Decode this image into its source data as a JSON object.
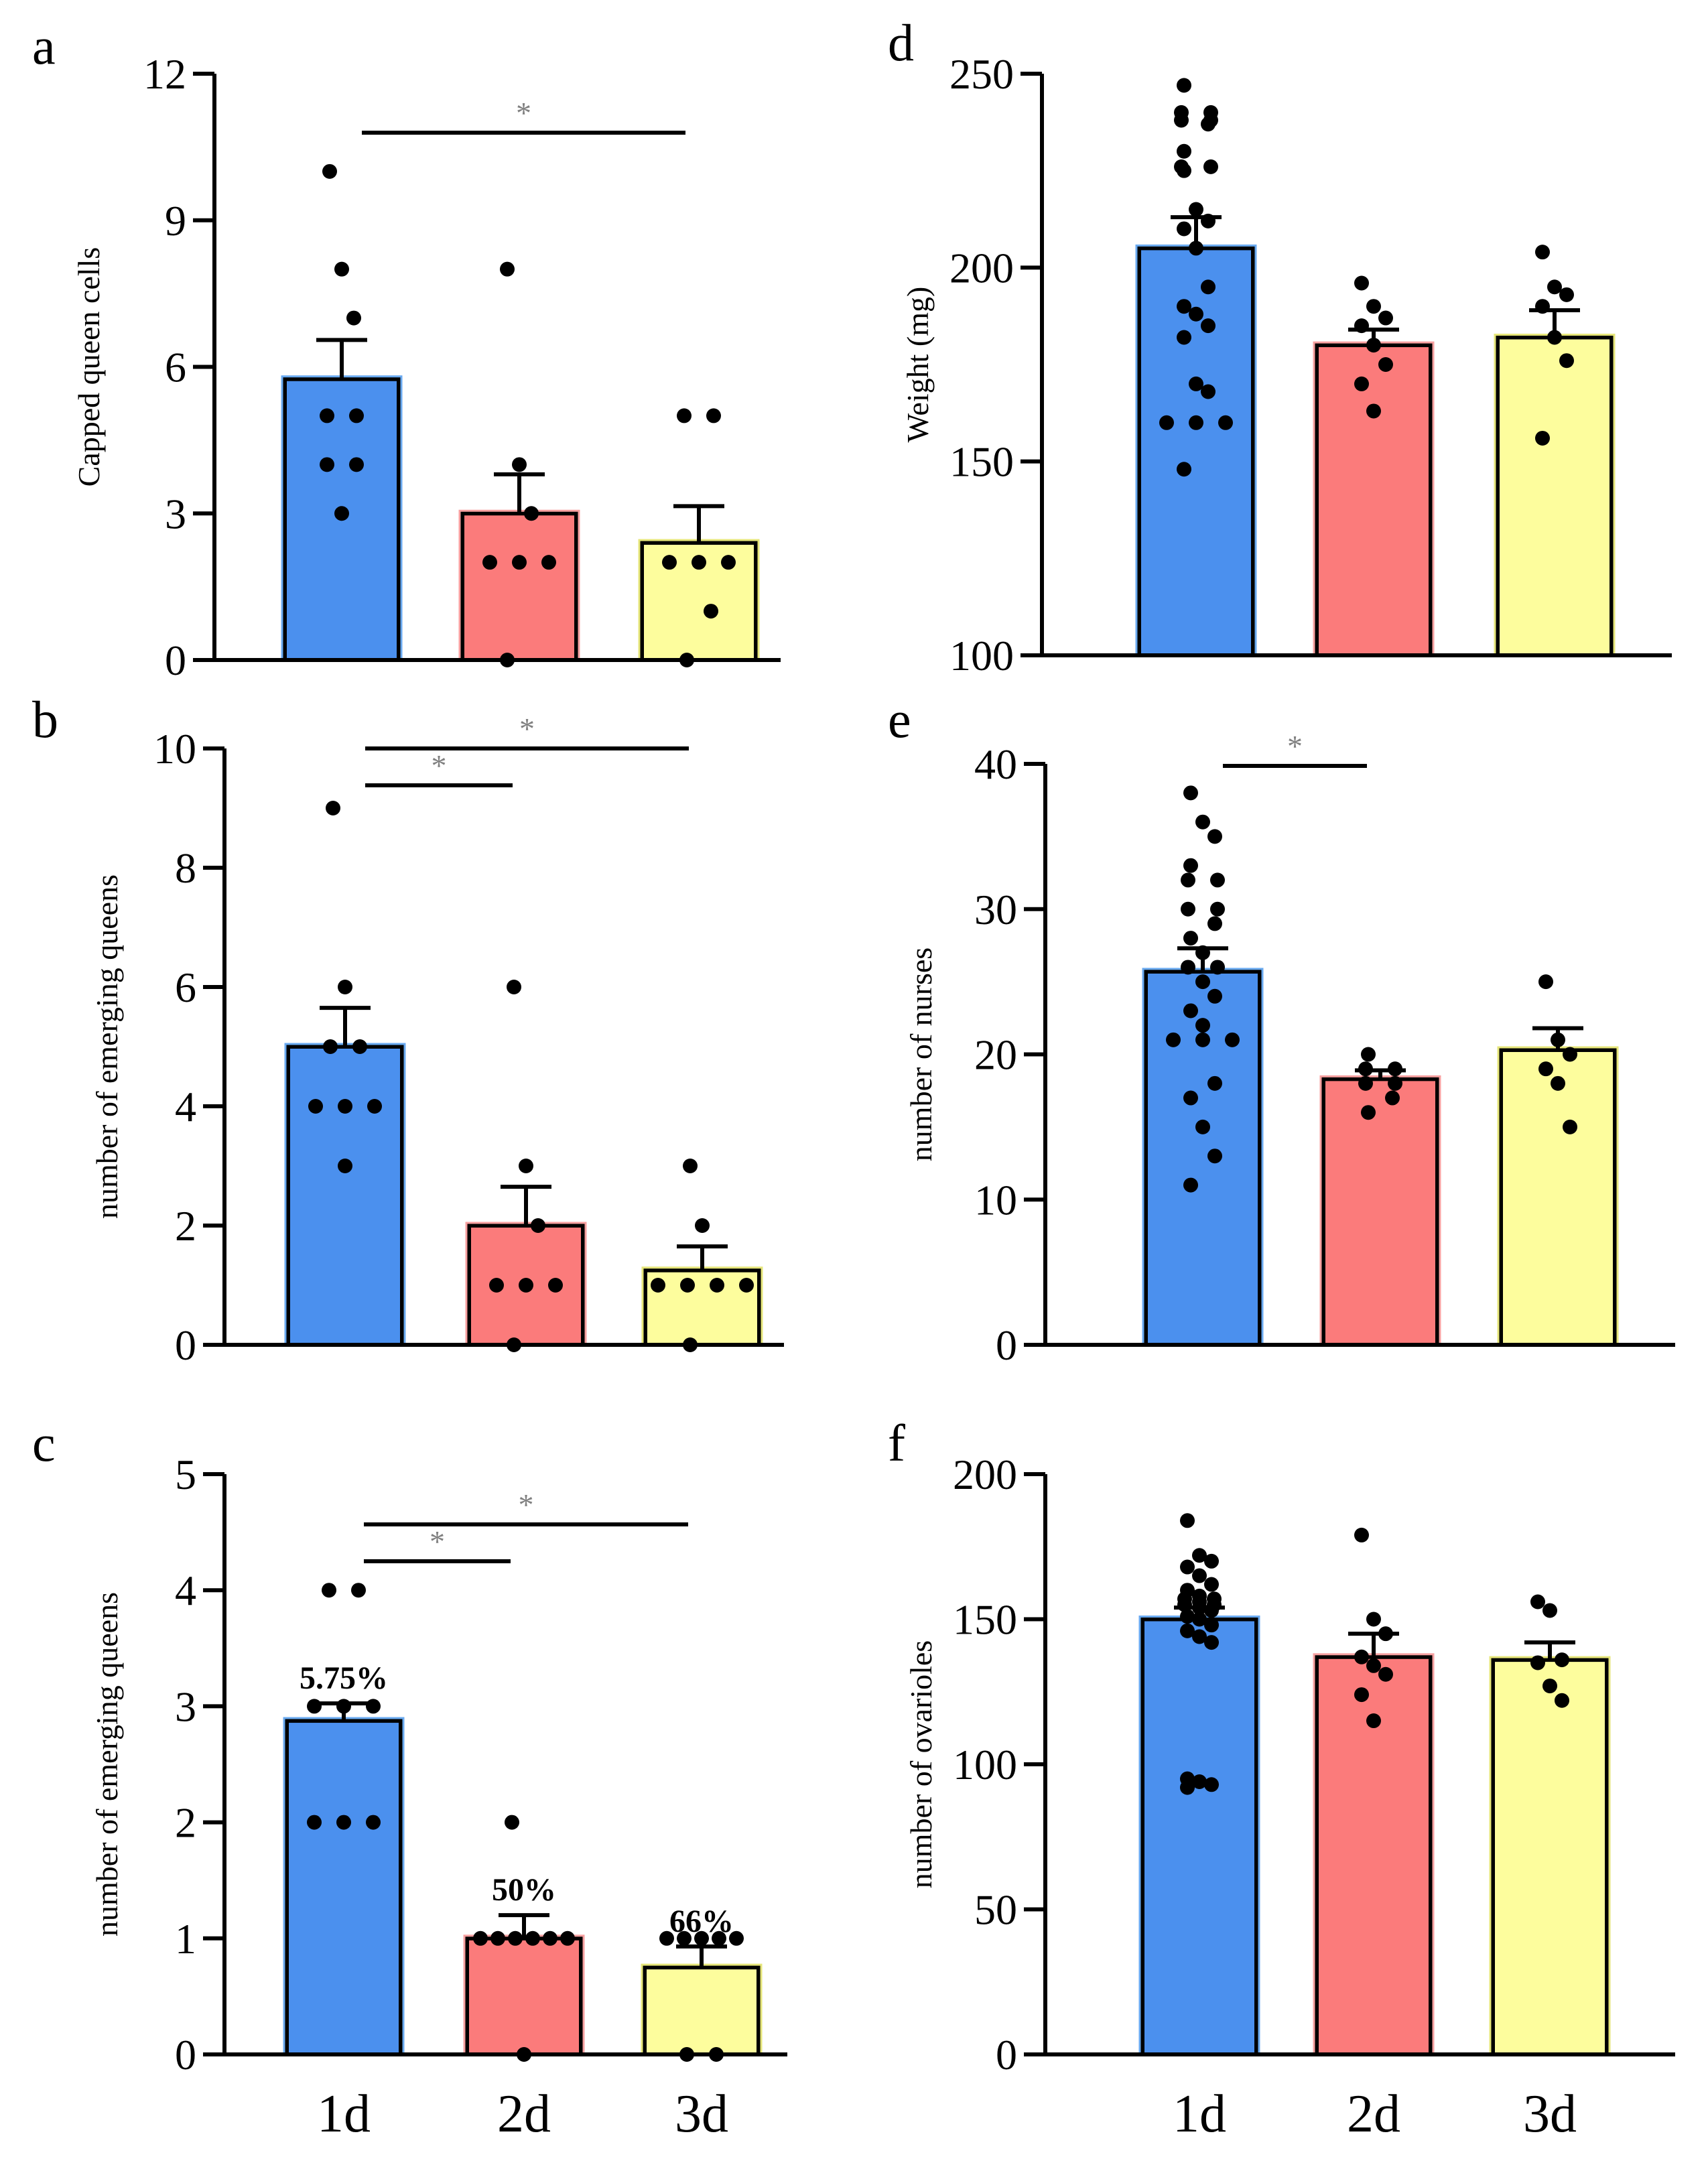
{
  "colors": {
    "blue": "#4b90ee",
    "blue_edge": "#6aaaf0",
    "red": "#fb7b7b",
    "red_edge": "#f7a0a0",
    "yellow": "#fdfd9d",
    "yellow_edge": "#e6e67a",
    "ink": "#000000",
    "sig": "#808080"
  },
  "chart_data": [
    {
      "id": "a",
      "panel_label": "a",
      "type": "bar",
      "categories": [
        "1d",
        "2d",
        "3d"
      ],
      "values": [
        5.75,
        3.0,
        2.4
      ],
      "sem": [
        0.8,
        0.8,
        0.75
      ],
      "points": [
        [
          10,
          8,
          7,
          5,
          5,
          4,
          4,
          3
        ],
        [
          8,
          4,
          3,
          2,
          2,
          2,
          0
        ],
        [
          5,
          5,
          2,
          2,
          2,
          1,
          0
        ]
      ],
      "ylabel": "Capped queen cells",
      "ylim": [
        0,
        12
      ],
      "yticks": [
        0,
        3,
        6,
        9,
        12
      ],
      "ytick_labels": [
        "0",
        "3",
        "6",
        "9",
        "12"
      ],
      "significance": [
        {
          "from": 0,
          "to": 2,
          "label": "*"
        }
      ],
      "bar_labels": [],
      "show_xticks": false
    },
    {
      "id": "b",
      "panel_label": "b",
      "type": "bar",
      "categories": [
        "1d",
        "2d",
        "3d"
      ],
      "values": [
        5.0,
        2.0,
        1.25
      ],
      "sem": [
        0.65,
        0.65,
        0.4
      ],
      "points": [
        [
          9,
          6,
          5,
          5,
          4,
          4,
          4,
          3
        ],
        [
          6,
          3,
          2,
          1,
          1,
          1,
          0
        ],
        [
          3,
          2,
          1,
          1,
          1,
          1,
          0
        ]
      ],
      "ylabel": "number of emerging queens",
      "ylim": [
        0,
        10
      ],
      "yticks": [
        0,
        2,
        4,
        6,
        8,
        10
      ],
      "ytick_labels": [
        "0",
        "2",
        "4",
        "6",
        "8",
        "10"
      ],
      "significance": [
        {
          "from": 0,
          "to": 1,
          "label": "*"
        },
        {
          "from": 0,
          "to": 2,
          "label": "*"
        }
      ],
      "bar_labels": [],
      "show_xticks": false
    },
    {
      "id": "c",
      "panel_label": "c",
      "type": "bar",
      "categories": [
        "1d",
        "2d",
        "3d"
      ],
      "values": [
        2.875,
        1.0,
        0.75
      ],
      "sem": [
        0.15,
        0.2,
        0.18
      ],
      "points": [
        [
          4,
          4,
          3,
          3,
          3,
          2,
          2,
          2
        ],
        [
          2,
          1,
          1,
          1,
          1,
          1,
          1,
          0
        ],
        [
          1,
          1,
          1,
          1,
          1,
          0,
          0
        ]
      ],
      "ylabel": "number of emerging queens",
      "ylim": [
        0,
        5
      ],
      "yticks": [
        0,
        1,
        2,
        3,
        4,
        5
      ],
      "ytick_labels": [
        "0",
        "1",
        "2",
        "3",
        "4",
        "5"
      ],
      "significance": [
        {
          "from": 0,
          "to": 1,
          "label": "*"
        },
        {
          "from": 0,
          "to": 2,
          "label": "*"
        }
      ],
      "bar_labels": [
        "5.75%",
        "50%",
        "66%"
      ],
      "show_xticks": true
    },
    {
      "id": "d",
      "panel_label": "d",
      "type": "bar",
      "categories": [
        "1d",
        "2d",
        "3d"
      ],
      "values": [
        205,
        180,
        182
      ],
      "sem": [
        8,
        4,
        7
      ],
      "points": [
        [
          247,
          240,
          240,
          238,
          238,
          237,
          230,
          226,
          226,
          225,
          215,
          212,
          210,
          205,
          195,
          190,
          188,
          185,
          182,
          170,
          168,
          160,
          160,
          160,
          148
        ],
        [
          196,
          190,
          187,
          185,
          180,
          175,
          170,
          163
        ],
        [
          204,
          195,
          193,
          190,
          182,
          176,
          156
        ]
      ],
      "ylabel": "Weight (mg)",
      "ylim": [
        100,
        250
      ],
      "yticks": [
        100,
        150,
        200,
        250
      ],
      "ytick_labels": [
        "100",
        "150",
        "200",
        "250"
      ],
      "significance": [],
      "bar_labels": [],
      "show_xticks": false
    },
    {
      "id": "e",
      "panel_label": "e",
      "type": "bar",
      "categories": [
        "1d",
        "2d",
        "3d"
      ],
      "values": [
        25.7,
        18.3,
        20.3
      ],
      "sem": [
        1.6,
        0.6,
        1.5
      ],
      "points": [
        [
          38,
          36,
          35,
          33,
          32,
          32,
          30,
          30,
          29,
          28,
          27,
          26,
          26,
          25,
          24,
          23,
          22,
          21,
          21,
          21,
          18,
          17,
          15,
          13,
          11
        ],
        [
          20,
          19,
          19,
          18,
          18,
          17,
          16
        ],
        [
          25,
          21,
          20,
          19,
          18,
          15
        ]
      ],
      "ylabel": "number of  nurses",
      "ylim": [
        0,
        40
      ],
      "yticks": [
        0,
        10,
        20,
        30,
        40
      ],
      "ytick_labels": [
        "0",
        "10",
        "20",
        "30",
        "40"
      ],
      "significance": [
        {
          "from": 0,
          "to": 1,
          "label": "*"
        }
      ],
      "bar_labels": [],
      "show_xticks": false
    },
    {
      "id": "f",
      "panel_label": "f",
      "type": "bar",
      "categories": [
        "1d",
        "2d",
        "3d"
      ],
      "values": [
        150,
        137,
        136
      ],
      "sem": [
        4,
        8,
        6
      ],
      "points": [
        [
          184,
          172,
          170,
          168,
          165,
          162,
          160,
          158,
          157,
          157,
          156,
          155,
          155,
          154,
          153,
          151,
          150,
          148,
          146,
          144,
          142,
          95,
          94,
          93,
          92
        ],
        [
          179,
          150,
          145,
          137,
          134,
          131,
          124,
          115
        ],
        [
          156,
          153,
          136,
          135,
          127,
          122
        ]
      ],
      "ylabel": "number of ovarioles",
      "ylim": [
        0,
        200
      ],
      "yticks": [
        0,
        50,
        100,
        150,
        200
      ],
      "ytick_labels": [
        "0",
        "50",
        "100",
        "150",
        "200"
      ],
      "significance": [],
      "bar_labels": [],
      "show_xticks": true
    }
  ]
}
